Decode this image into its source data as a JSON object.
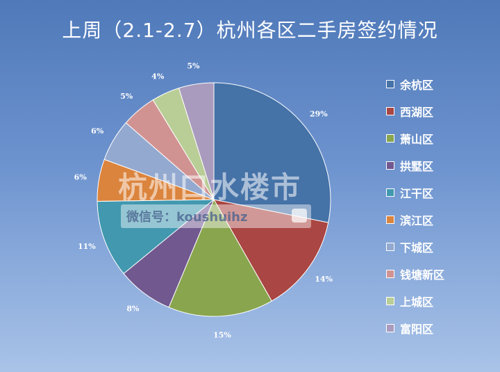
{
  "title": "上周（2.1-2.7）杭州各区二手房签约情况",
  "watermark": {
    "line1": "杭州口水楼市",
    "line2": "微信号：koushuihz"
  },
  "chart_data": {
    "type": "pie",
    "title": "上周（2.1-2.7）杭州各区二手房签约情况",
    "legend_position": "right",
    "start_angle": "12 o'clock, clockwise",
    "slices": [
      {
        "label": "余杭区",
        "value": 29,
        "display": "29%",
        "color": "#4572a7"
      },
      {
        "label": "西湖区",
        "value": 14,
        "display": "14%",
        "color": "#aa4643"
      },
      {
        "label": "萧山区",
        "value": 15,
        "display": "15%",
        "color": "#89a54e"
      },
      {
        "label": "拱墅区",
        "value": 8,
        "display": "8%",
        "color": "#71588f"
      },
      {
        "label": "江干区",
        "value": 11,
        "display": "11%",
        "color": "#4198af"
      },
      {
        "label": "滨江区",
        "value": 6,
        "display": "6%",
        "color": "#db843d"
      },
      {
        "label": "下城区",
        "value": 6,
        "display": "6%",
        "color": "#93a9cf"
      },
      {
        "label": "钱塘新区",
        "value": 5,
        "display": "5%",
        "color": "#d19392"
      },
      {
        "label": "上城区",
        "value": 4,
        "display": "4%",
        "color": "#b9cd96"
      },
      {
        "label": "富阳区",
        "value": 5,
        "display": "5%",
        "color": "#a99bbd"
      }
    ]
  }
}
